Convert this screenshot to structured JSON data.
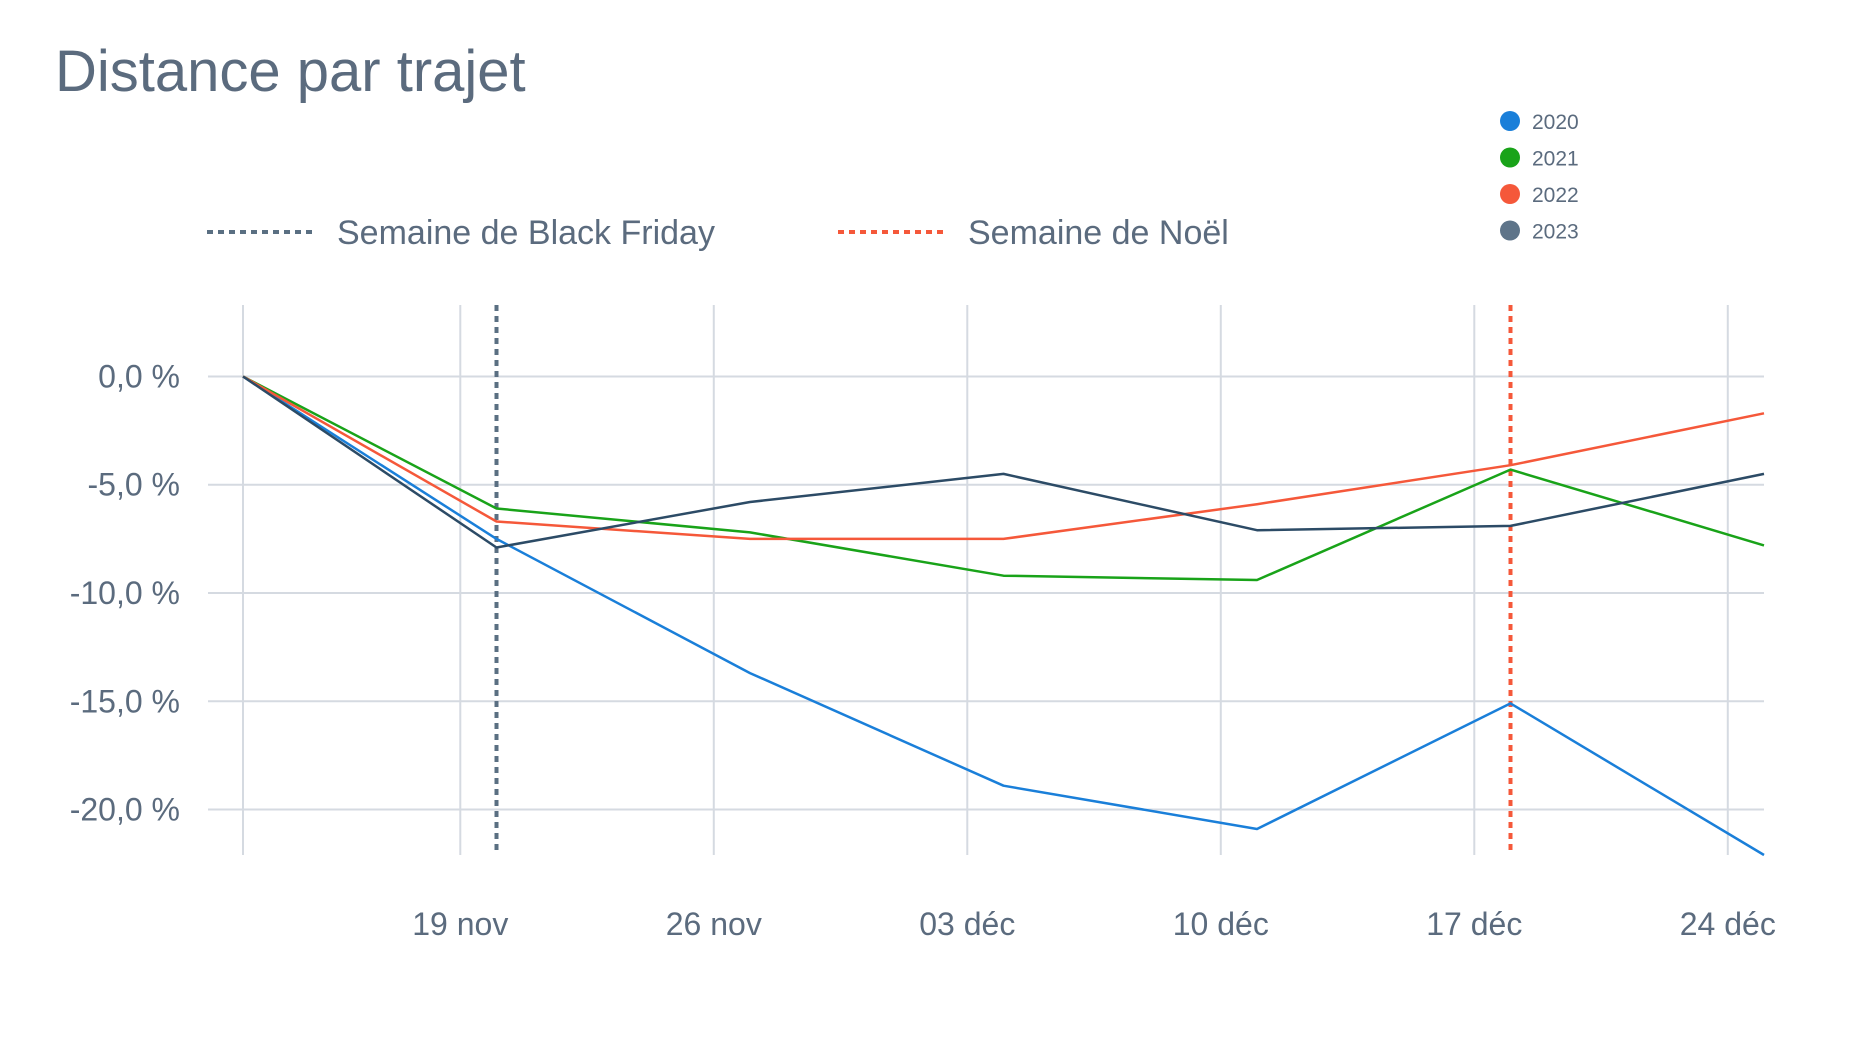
{
  "chart_data": {
    "type": "line",
    "title": "Distance par trajet",
    "xlabel": "",
    "ylabel": "",
    "x_ticks": [
      {
        "date": "2022-11-19",
        "label": "19 nov"
      },
      {
        "date": "2022-11-26",
        "label": "26 nov"
      },
      {
        "date": "2022-12-03",
        "label": "03 déc"
      },
      {
        "date": "2022-12-10",
        "label": "10 déc"
      },
      {
        "date": "2022-12-17",
        "label": "17 déc"
      },
      {
        "date": "2022-12-24",
        "label": "24 déc"
      }
    ],
    "y_ticks": [
      {
        "value": 0,
        "label": "0,0 %"
      },
      {
        "value": -5,
        "label": "-5,0 %"
      },
      {
        "value": -10,
        "label": "-10,0 %"
      },
      {
        "value": -15,
        "label": "-15,0 %"
      },
      {
        "value": -20,
        "label": "-20,0 %"
      }
    ],
    "ylim": [
      -22.1,
      3.3
    ],
    "xlim": [
      "2022-11-13",
      "2022-12-25"
    ],
    "grid": true,
    "legend_position": "top-right",
    "series": [
      {
        "name": "2020",
        "color": "#1a7fd9",
        "x": [
          "2022-11-13",
          "2022-11-20",
          "2022-11-27",
          "2022-12-04",
          "2022-12-11",
          "2022-12-18",
          "2022-12-25"
        ],
        "values": [
          0.0,
          -7.5,
          -13.7,
          -18.9,
          -20.9,
          -15.1,
          -22.1
        ]
      },
      {
        "name": "2021",
        "color": "#19a319",
        "x": [
          "2022-11-13",
          "2022-11-20",
          "2022-11-27",
          "2022-12-04",
          "2022-12-11",
          "2022-12-18",
          "2022-12-25"
        ],
        "values": [
          0.0,
          -6.1,
          -7.2,
          -9.2,
          -9.4,
          -4.3,
          -7.8
        ]
      },
      {
        "name": "2022",
        "color": "#f5583a",
        "x": [
          "2022-11-13",
          "2022-11-20",
          "2022-11-27",
          "2022-12-04",
          "2022-12-11",
          "2022-12-18",
          "2022-12-25"
        ],
        "values": [
          0.0,
          -6.7,
          -7.5,
          -7.5,
          -5.9,
          -4.1,
          -1.7
        ]
      },
      {
        "name": "2023",
        "color": "#2c4b66",
        "x": [
          "2022-11-13",
          "2022-11-20",
          "2022-11-27",
          "2022-12-04",
          "2022-12-11",
          "2022-12-18",
          "2022-12-25"
        ],
        "values": [
          0.0,
          -7.9,
          -5.8,
          -4.5,
          -7.1,
          -6.9,
          -4.5
        ]
      }
    ],
    "legend_dot_colors": [
      "#1a7fd9",
      "#19a319",
      "#f5583a",
      "#5e7489"
    ],
    "reference_lines": [
      {
        "label": "Semaine de Black Friday",
        "x": "2022-11-20",
        "color": "#5a6f82"
      },
      {
        "label": "Semaine de Noël",
        "x": "2022-12-18",
        "color": "#f5583a"
      }
    ]
  }
}
